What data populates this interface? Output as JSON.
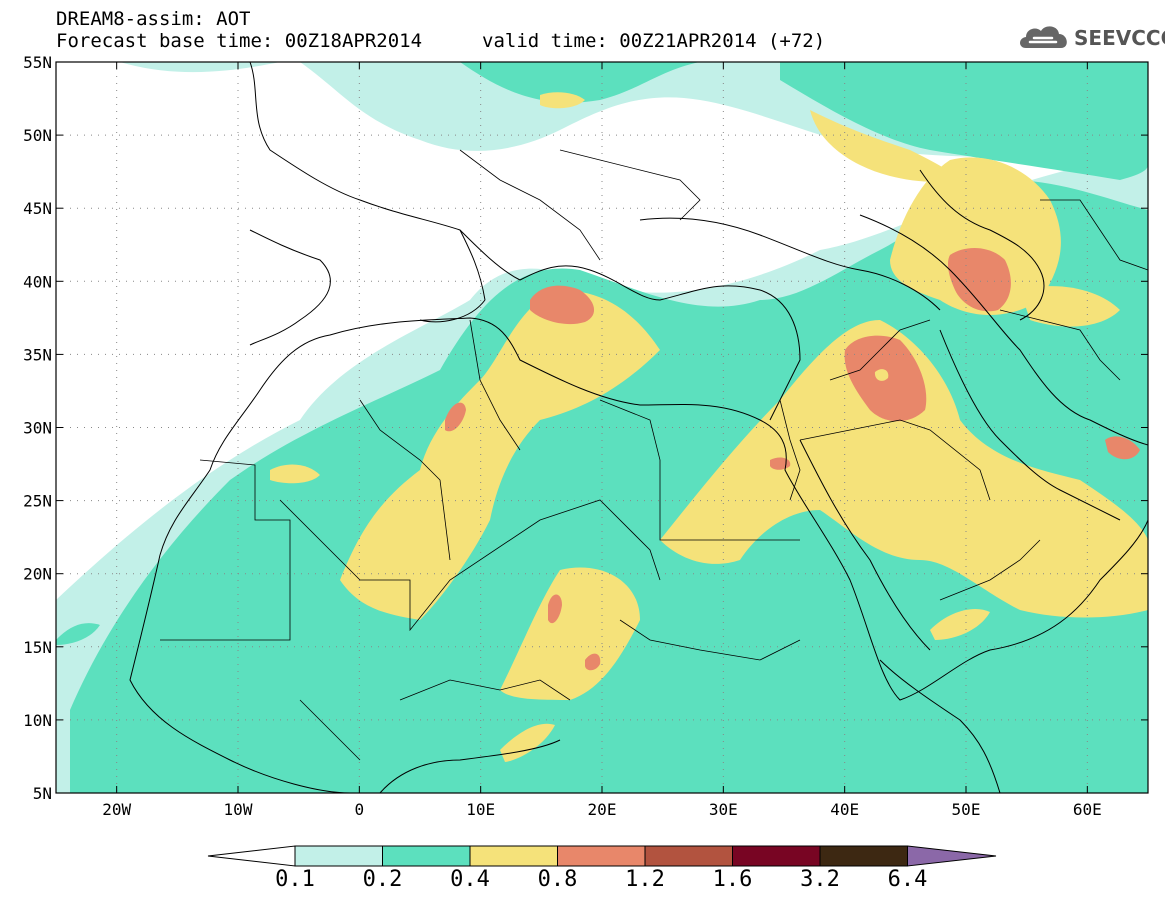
{
  "header": {
    "title": "DREAM8-assim: AOT",
    "base_time": "Forecast base time: 00Z18APR2014",
    "valid_time": "valid time: 00Z21APR2014 (+72)"
  },
  "logo": {
    "text": "SEEVCCC",
    "icon": "cloud-icon"
  },
  "map": {
    "lat_labels": [
      "55N",
      "50N",
      "45N",
      "40N",
      "35N",
      "30N",
      "25N",
      "20N",
      "15N",
      "10N",
      "5N"
    ],
    "lon_labels": [
      "20W",
      "10W",
      "0",
      "10E",
      "20E",
      "30E",
      "40E",
      "50E",
      "60E"
    ],
    "lat_values": [
      55,
      50,
      45,
      40,
      35,
      30,
      25,
      20,
      15,
      10,
      5
    ],
    "lon_values": [
      -20,
      -10,
      0,
      10,
      20,
      30,
      40,
      50,
      60
    ],
    "extent": {
      "lon_min": -25,
      "lon_max": 65,
      "lat_min": 5,
      "lat_max": 55
    }
  },
  "colorbar": {
    "labels": [
      "0.1",
      "0.2",
      "0.4",
      "0.8",
      "1.2",
      "1.6",
      "3.2",
      "6.4"
    ],
    "colors": {
      "below": "#ffffff",
      "c1": "#c2f0e8",
      "c2": "#5ce0be",
      "c3": "#f5e27a",
      "c4": "#e8876a",
      "c5": "#b2533f",
      "c6": "#780523",
      "c7": "#3d2812",
      "above": "#8b68a8"
    }
  }
}
